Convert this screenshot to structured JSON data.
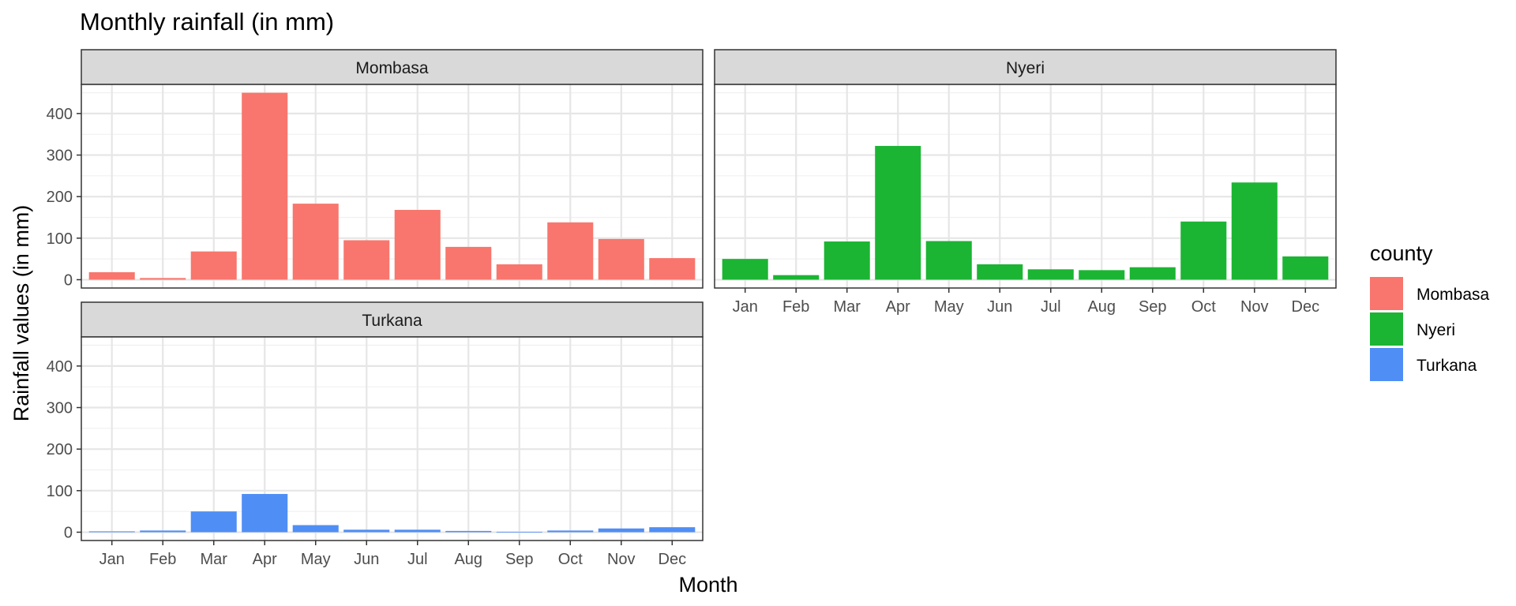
{
  "chart_data": {
    "type": "bar",
    "title": "Monthly rainfall (in mm)",
    "xlabel": "Month",
    "ylabel": "Rainfall values (in mm)",
    "ylim": [
      -20,
      470
    ],
    "yticks": [
      0,
      100,
      200,
      300,
      400
    ],
    "grid": true,
    "legend": {
      "title": "county",
      "position": "right",
      "entries": [
        "Mombasa",
        "Nyeri",
        "Turkana"
      ]
    },
    "categories": [
      "Jan",
      "Feb",
      "Mar",
      "Apr",
      "May",
      "Jun",
      "Jul",
      "Aug",
      "Sep",
      "Oct",
      "Nov",
      "Dec"
    ],
    "facets": [
      {
        "name": "Mombasa",
        "color": "#F8766D",
        "values": [
          18,
          4,
          68,
          450,
          183,
          95,
          168,
          79,
          37,
          138,
          98,
          52
        ]
      },
      {
        "name": "Nyeri",
        "color": "#1BB533",
        "values": [
          50,
          11,
          92,
          322,
          93,
          37,
          25,
          23,
          30,
          140,
          234,
          56
        ]
      },
      {
        "name": "Turkana",
        "color": "#4F8EF5",
        "values": [
          2,
          4,
          50,
          92,
          17,
          6,
          6,
          3,
          1,
          4,
          9,
          12
        ]
      }
    ]
  }
}
